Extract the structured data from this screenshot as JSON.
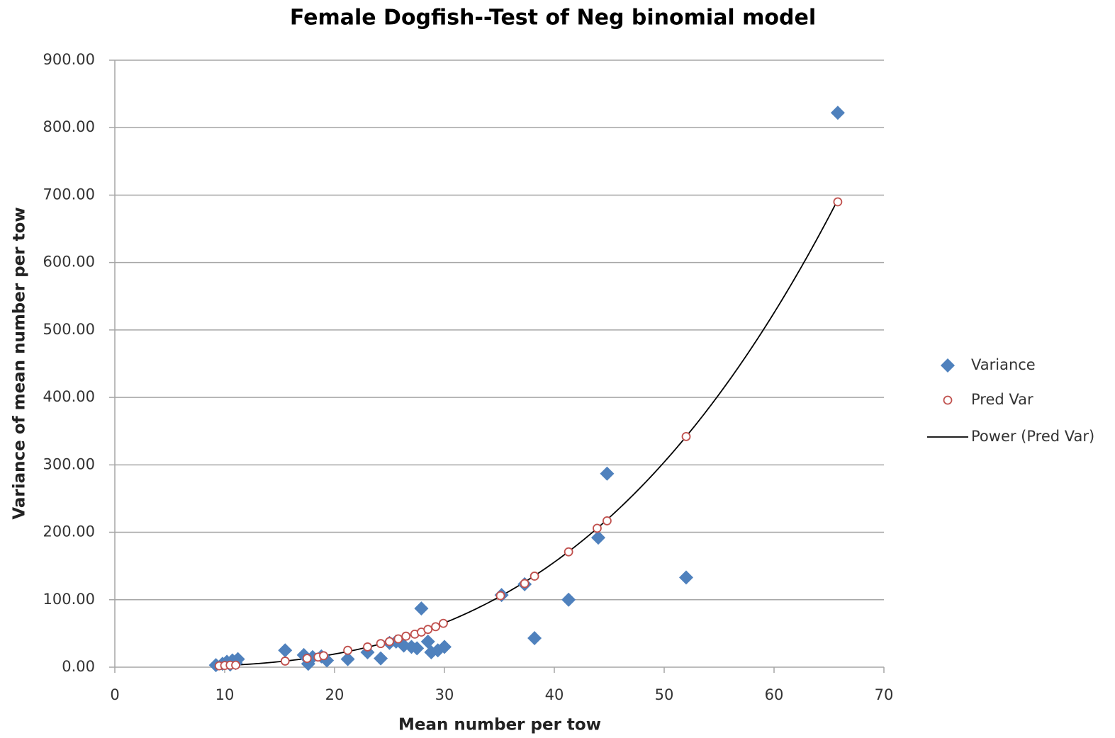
{
  "chart_data": {
    "type": "scatter",
    "title": "Female Dogfish--Test of Neg binomial model",
    "x_label": "Mean number per tow",
    "y_label": "Variance of mean number per tow",
    "xlim": [
      0,
      70
    ],
    "xticks": [
      0,
      10,
      20,
      30,
      40,
      50,
      60,
      70
    ],
    "ylim": [
      0,
      900
    ],
    "yticks": [
      {
        "value": 0,
        "label": "0.00"
      },
      {
        "value": 100,
        "label": "100.00"
      },
      {
        "value": 200,
        "label": "200.00"
      },
      {
        "value": 300,
        "label": "300.00"
      },
      {
        "value": 400,
        "label": "400.00"
      },
      {
        "value": 500,
        "label": "500.00"
      },
      {
        "value": 600,
        "label": "600.00"
      },
      {
        "value": 700,
        "label": "700.00"
      },
      {
        "value": 800,
        "label": "800.00"
      },
      {
        "value": 900,
        "label": "900.00"
      }
    ],
    "grid": true,
    "legend": "right",
    "series": [
      {
        "name": "Variance",
        "color": "#4f81bd",
        "marker": "diamond",
        "x": [
          9.2,
          9.8,
          10.2,
          10.5,
          10.7,
          11,
          11.2,
          15.5,
          17.2,
          17.6,
          18,
          18.8,
          19.3,
          21.2,
          23,
          24.2,
          25,
          25.6,
          26.3,
          27,
          27.5,
          27.9,
          28.5,
          28.8,
          29.4,
          30,
          35.2,
          37.3,
          38.2,
          41.3,
          44,
          44.8,
          52,
          65.8
        ],
        "values": [
          3,
          5,
          8,
          4,
          10,
          6,
          12,
          25,
          18,
          5,
          15,
          16,
          10,
          12,
          22,
          13,
          36,
          38,
          32,
          30,
          28,
          87,
          38,
          22,
          25,
          30,
          107,
          123,
          43,
          100,
          192,
          287,
          133,
          822
        ]
      },
      {
        "name": "Pred Var",
        "color": "#c0504d",
        "marker": "circle",
        "x": [
          9.5,
          10,
          10.5,
          11,
          15.5,
          17.5,
          18.5,
          19,
          21.2,
          23,
          24.2,
          25,
          25.8,
          26.5,
          27.3,
          27.9,
          28.5,
          29.2,
          29.9,
          35.1,
          37.3,
          38.2,
          41.3,
          43.9,
          44.8,
          52,
          65.8
        ],
        "values": [
          2,
          2.5,
          3,
          3,
          9,
          13,
          15,
          17,
          25,
          30,
          35,
          38,
          42,
          46,
          49,
          52,
          56,
          60,
          65,
          106,
          124,
          135,
          171,
          206,
          217,
          342,
          690
        ],
        "trendline": {
          "name": "Power (Pred Var)",
          "color": "#000000"
        }
      }
    ]
  }
}
